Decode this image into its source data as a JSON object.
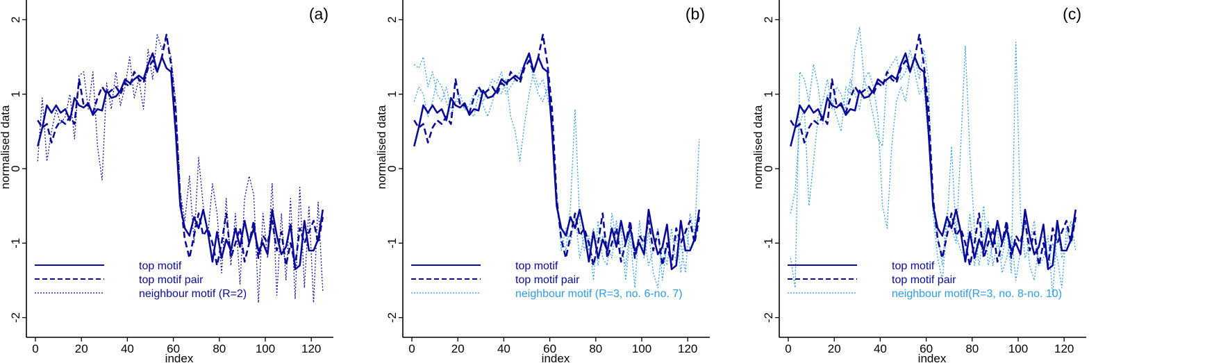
{
  "colors": {
    "dark": "#0a0a96",
    "light": "#2f9be6",
    "axis": "#000000"
  },
  "chart_data": [
    {
      "type": "line",
      "panel_label": "(a)",
      "xlabel": "index",
      "ylabel": "normalised data",
      "xlim": [
        0,
        126
      ],
      "ylim": [
        -2.3,
        2.3
      ],
      "xticks": [
        0,
        20,
        40,
        60,
        80,
        100,
        120
      ],
      "yticks": [
        -2,
        -1,
        0,
        1,
        2
      ],
      "legend_placement": "bottom-left",
      "x": [
        1,
        3,
        5,
        7,
        9,
        11,
        13,
        15,
        17,
        19,
        21,
        23,
        25,
        27,
        29,
        31,
        33,
        35,
        37,
        39,
        41,
        43,
        45,
        47,
        49,
        51,
        53,
        55,
        57,
        59,
        61,
        63,
        65,
        67,
        69,
        71,
        73,
        75,
        77,
        79,
        81,
        83,
        85,
        87,
        89,
        91,
        93,
        95,
        97,
        99,
        101,
        103,
        105,
        107,
        109,
        111,
        113,
        115,
        117,
        119,
        121,
        123,
        125
      ],
      "series": [
        {
          "name": "top motif",
          "style": "solid",
          "color": "dark",
          "values": [
            0.3,
            0.55,
            0.85,
            0.75,
            0.85,
            0.75,
            0.8,
            0.65,
            0.95,
            0.85,
            0.82,
            0.88,
            0.72,
            0.8,
            0.78,
            1.05,
            0.95,
            0.97,
            1.05,
            1.2,
            1.15,
            1.2,
            1.25,
            1.2,
            1.4,
            1.55,
            1.3,
            1.5,
            1.35,
            1.3,
            0.5,
            -0.5,
            -0.8,
            -0.9,
            -0.65,
            -0.8,
            -0.55,
            -0.85,
            -1.25,
            -0.85,
            -1.2,
            -0.95,
            -1.1,
            -0.8,
            -1.05,
            -0.7,
            -1.0,
            -0.8,
            -1.1,
            -1.0,
            -1.15,
            -0.55,
            -0.9,
            -1.15,
            -1.05,
            -0.75,
            -1.35,
            -1.3,
            -0.7,
            -1.1,
            -1.1,
            -0.95,
            -0.55
          ]
        },
        {
          "name": "top motif pair",
          "style": "dashed",
          "color": "dark",
          "values": [
            0.65,
            0.55,
            0.6,
            0.35,
            0.55,
            0.65,
            0.6,
            0.7,
            0.6,
            1.2,
            0.85,
            0.85,
            0.75,
            0.95,
            1.1,
            1.0,
            1.05,
            1.1,
            1.0,
            1.15,
            1.1,
            1.3,
            1.2,
            1.15,
            1.35,
            1.45,
            1.3,
            1.5,
            1.8,
            1.4,
            0.8,
            -0.4,
            -0.95,
            -1.2,
            -0.9,
            -0.6,
            -0.9,
            -0.8,
            -1.0,
            -1.3,
            -1.0,
            -0.6,
            -1.2,
            -1.0,
            -0.8,
            -1.25,
            -1.0,
            -0.7,
            -1.2,
            -0.9,
            -1.0,
            -0.7,
            -1.1,
            -0.85,
            -1.3,
            -1.0,
            -1.3,
            -0.8,
            -1.0,
            -0.85,
            -0.7,
            -1.0,
            -0.65
          ]
        },
        {
          "name": "neighbour motif (R=2)",
          "style": "dotted",
          "color": "dark",
          "values": [
            0.1,
            0.95,
            0.1,
            0.5,
            0.8,
            0.6,
            0.7,
            1.0,
            0.4,
            1.25,
            1.3,
            0.8,
            1.3,
            0.3,
            -0.15,
            1.15,
            0.8,
            1.3,
            0.85,
            1.1,
            1.5,
            0.95,
            1.2,
            0.8,
            1.6,
            1.2,
            1.8,
            1.6,
            1.75,
            1.5,
            0.9,
            -0.3,
            -0.7,
            -0.1,
            -1.0,
            0.15,
            -0.5,
            -0.9,
            -0.2,
            -0.6,
            -1.4,
            -0.4,
            -1.3,
            -0.6,
            -1.55,
            -0.4,
            -0.1,
            -0.35,
            -1.8,
            -0.6,
            -1.2,
            -0.2,
            -1.7,
            -0.6,
            -1.5,
            -0.4,
            -1.75,
            -0.25,
            -1.6,
            -0.5,
            -1.8,
            -0.45,
            -1.65
          ]
        }
      ]
    },
    {
      "type": "line",
      "panel_label": "(b)",
      "xlabel": "index",
      "ylabel": "normalised data",
      "xlim": [
        0,
        126
      ],
      "ylim": [
        -2.3,
        2.3
      ],
      "xticks": [
        0,
        20,
        40,
        60,
        80,
        100,
        120
      ],
      "yticks": [
        -2,
        -1,
        0,
        1,
        2
      ],
      "legend_placement": "bottom-left",
      "x": [
        1,
        3,
        5,
        7,
        9,
        11,
        13,
        15,
        17,
        19,
        21,
        23,
        25,
        27,
        29,
        31,
        33,
        35,
        37,
        39,
        41,
        43,
        45,
        47,
        49,
        51,
        53,
        55,
        57,
        59,
        61,
        63,
        65,
        67,
        69,
        71,
        73,
        75,
        77,
        79,
        81,
        83,
        85,
        87,
        89,
        91,
        93,
        95,
        97,
        99,
        101,
        103,
        105,
        107,
        109,
        111,
        113,
        115,
        117,
        119,
        121,
        123,
        125
      ],
      "series": [
        {
          "name": "top motif",
          "style": "solid",
          "color": "dark",
          "values": [
            0.3,
            0.55,
            0.85,
            0.75,
            0.85,
            0.75,
            0.8,
            0.65,
            0.95,
            0.85,
            0.82,
            0.88,
            0.72,
            0.8,
            0.78,
            1.05,
            0.95,
            0.97,
            1.05,
            1.2,
            1.15,
            1.2,
            1.25,
            1.2,
            1.4,
            1.55,
            1.3,
            1.5,
            1.35,
            1.3,
            0.5,
            -0.5,
            -0.8,
            -0.9,
            -0.65,
            -0.8,
            -0.55,
            -0.85,
            -1.25,
            -0.85,
            -1.2,
            -0.95,
            -1.1,
            -0.8,
            -1.05,
            -0.7,
            -1.0,
            -0.8,
            -1.1,
            -1.0,
            -1.15,
            -0.55,
            -0.9,
            -1.15,
            -1.05,
            -0.75,
            -1.35,
            -1.3,
            -0.7,
            -1.1,
            -1.1,
            -0.95,
            -0.55
          ]
        },
        {
          "name": "top motif pair",
          "style": "dashed",
          "color": "dark",
          "values": [
            0.65,
            0.55,
            0.6,
            0.35,
            0.55,
            0.65,
            0.6,
            0.7,
            0.6,
            1.2,
            0.85,
            0.85,
            0.75,
            0.95,
            1.1,
            1.0,
            1.05,
            1.1,
            1.0,
            1.15,
            1.1,
            1.3,
            1.2,
            1.15,
            1.35,
            1.45,
            1.3,
            1.5,
            1.8,
            1.4,
            0.8,
            -0.4,
            -0.95,
            -1.2,
            -0.9,
            -0.6,
            -0.9,
            -0.8,
            -1.0,
            -1.3,
            -1.0,
            -0.6,
            -1.2,
            -1.0,
            -0.8,
            -1.25,
            -1.0,
            -0.7,
            -1.2,
            -0.9,
            -1.0,
            -0.7,
            -1.1,
            -0.85,
            -1.3,
            -1.0,
            -1.3,
            -0.8,
            -1.0,
            -0.85,
            -0.7,
            -1.0,
            -0.65
          ]
        },
        {
          "name": "neighbour motif (R=3, no. 6-no. 7)",
          "style": "dotted",
          "color": "light",
          "values": [
            1.4,
            1.35,
            1.5,
            1.1,
            1.3,
            1.0,
            0.9,
            1.1,
            0.8,
            0.9,
            0.9,
            0.8,
            0.75,
            0.7,
            1.0,
            0.85,
            0.7,
            0.9,
            1.1,
            1.0,
            1.2,
            0.7,
            0.5,
            0.1,
            0.6,
            1.0,
            1.3,
            1.1,
            1.2,
            0.95,
            0.7,
            -0.5,
            -0.9,
            -1.1,
            -0.5,
            0.8,
            -0.7,
            -1.1,
            -0.9,
            -1.5,
            -0.7,
            -1.2,
            -1.3,
            -0.6,
            -1.0,
            -0.8,
            -1.5,
            -0.9,
            -1.6,
            -0.7,
            -1.2,
            -0.85,
            -1.4,
            -1.6,
            -1.0,
            -1.3,
            -0.8,
            -1.3,
            -1.0,
            -1.4,
            -0.6,
            -0.9,
            0.4
          ]
        },
        {
          "name": "",
          "style": "dotted",
          "color": "light",
          "values": [
            0.9,
            1.1,
            1.0,
            0.7,
            0.9,
            1.2,
            1.1,
            0.9,
            0.7,
            0.9,
            1.0,
            0.8,
            0.85,
            1.0,
            1.1,
            0.9,
            1.05,
            1.2,
            1.15,
            1.3,
            1.0,
            1.1,
            1.2,
            1.3,
            1.4,
            1.5,
            1.2,
            1.0,
            0.9,
            1.1,
            0.6,
            -0.3,
            -1.1,
            -0.8,
            -1.0,
            -0.6,
            -1.2,
            -0.9,
            -1.1,
            -0.8,
            -1.3,
            -0.9,
            -1.0,
            -1.2,
            -0.7,
            -1.1,
            -1.3,
            -0.8,
            -1.2,
            -1.0,
            -0.9,
            -1.3,
            -1.1,
            -0.8,
            -1.5,
            -1.0,
            -1.2,
            -0.9,
            -1.4,
            -0.8,
            -1.1,
            -0.9,
            -0.8
          ]
        }
      ]
    },
    {
      "type": "line",
      "panel_label": "(c)",
      "xlabel": "index",
      "ylabel": "normalised data",
      "xlim": [
        0,
        126
      ],
      "ylim": [
        -2.3,
        2.3
      ],
      "xticks": [
        0,
        20,
        40,
        60,
        80,
        100,
        120
      ],
      "yticks": [
        -2,
        -1,
        0,
        1,
        2
      ],
      "legend_placement": "bottom-left",
      "x": [
        1,
        3,
        5,
        7,
        9,
        11,
        13,
        15,
        17,
        19,
        21,
        23,
        25,
        27,
        29,
        31,
        33,
        35,
        37,
        39,
        41,
        43,
        45,
        47,
        49,
        51,
        53,
        55,
        57,
        59,
        61,
        63,
        65,
        67,
        69,
        71,
        73,
        75,
        77,
        79,
        81,
        83,
        85,
        87,
        89,
        91,
        93,
        95,
        97,
        99,
        101,
        103,
        105,
        107,
        109,
        111,
        113,
        115,
        117,
        119,
        121,
        123,
        125
      ],
      "series": [
        {
          "name": "top motif",
          "style": "solid",
          "color": "dark",
          "values": [
            0.3,
            0.55,
            0.85,
            0.75,
            0.85,
            0.75,
            0.8,
            0.65,
            0.95,
            0.85,
            0.82,
            0.88,
            0.72,
            0.8,
            0.78,
            1.05,
            0.95,
            0.97,
            1.05,
            1.2,
            1.15,
            1.2,
            1.25,
            1.2,
            1.4,
            1.55,
            1.3,
            1.5,
            1.35,
            1.3,
            0.5,
            -0.5,
            -0.8,
            -0.9,
            -0.65,
            -0.8,
            -0.55,
            -0.85,
            -1.25,
            -0.85,
            -1.2,
            -0.95,
            -1.1,
            -0.8,
            -1.05,
            -0.7,
            -1.0,
            -0.8,
            -1.1,
            -1.0,
            -1.15,
            -0.55,
            -0.9,
            -1.15,
            -1.05,
            -0.75,
            -1.35,
            -1.3,
            -0.7,
            -1.1,
            -1.1,
            -0.95,
            -0.55
          ]
        },
        {
          "name": "top motif pair",
          "style": "dashed",
          "color": "dark",
          "values": [
            0.65,
            0.55,
            0.6,
            0.35,
            0.55,
            0.65,
            0.6,
            0.7,
            0.6,
            1.2,
            0.85,
            0.85,
            0.75,
            0.95,
            1.1,
            1.0,
            1.05,
            1.1,
            1.0,
            1.15,
            1.1,
            1.3,
            1.2,
            1.15,
            1.35,
            1.45,
            1.3,
            1.5,
            1.8,
            1.4,
            0.8,
            -0.4,
            -0.95,
            -1.2,
            -0.9,
            -0.6,
            -0.9,
            -0.8,
            -1.0,
            -1.3,
            -1.0,
            -0.6,
            -1.2,
            -1.0,
            -0.8,
            -1.25,
            -1.0,
            -0.7,
            -1.2,
            -0.9,
            -1.0,
            -0.7,
            -1.1,
            -0.85,
            -1.3,
            -1.0,
            -1.3,
            -0.8,
            -1.0,
            -0.85,
            -0.7,
            -1.0,
            -0.65
          ]
        },
        {
          "name": "neighbour motif(R=3, no. 8-no. 10)",
          "style": "dotted",
          "color": "light",
          "values": [
            -1.2,
            -1.6,
            1.3,
            1.2,
            0.9,
            1.4,
            1.1,
            0.6,
            1.0,
            0.9,
            0.7,
            0.5,
            1.1,
            1.0,
            1.6,
            1.9,
            1.2,
            1.0,
            0.7,
            0.4,
            0.3,
            1.3,
            1.4,
            1.5,
            1.2,
            1.3,
            1.6,
            1.3,
            1.0,
            1.1,
            0.4,
            -0.5,
            -0.9,
            -1.3,
            -0.6,
            -0.8,
            -1.0,
            0.3,
            1.65,
            0.2,
            -0.8,
            -1.3,
            -0.9,
            -0.7,
            -1.3,
            -1.0,
            -1.2,
            -0.8,
            -1.4,
            1.7,
            -0.6,
            -1.2,
            -1.0,
            -0.7,
            -1.3,
            -1.2,
            -0.9,
            -1.7,
            -0.8,
            -1.2,
            -1.0,
            -0.7,
            -1.1
          ]
        },
        {
          "name": "",
          "style": "dotted",
          "color": "light",
          "values": [
            -0.6,
            -0.3,
            0.6,
            0.8,
            -0.5,
            0.1,
            0.7,
            0.9,
            1.2,
            0.8,
            1.1,
            1.0,
            0.8,
            1.2,
            1.0,
            0.8,
            1.2,
            1.3,
            1.1,
            0.7,
            -0.5,
            -0.8,
            0.3,
            0.9,
            1.1,
            0.9,
            1.3,
            1.5,
            1.2,
            1.6,
            1.2,
            -0.6,
            -1.2,
            -1.5,
            -0.8,
            0.3,
            -0.9,
            -1.1,
            -1.2,
            -0.6,
            -1.3,
            -1.0,
            -0.5,
            -1.3,
            -1.0,
            -0.8,
            -1.4,
            -1.2,
            -0.9,
            -1.5,
            -1.1,
            -0.7,
            -1.3,
            -1.5,
            -1.0,
            -0.9,
            -1.3,
            -1.0,
            -1.2,
            -1.6,
            -0.8,
            -1.0,
            -0.7
          ]
        }
      ]
    }
  ]
}
